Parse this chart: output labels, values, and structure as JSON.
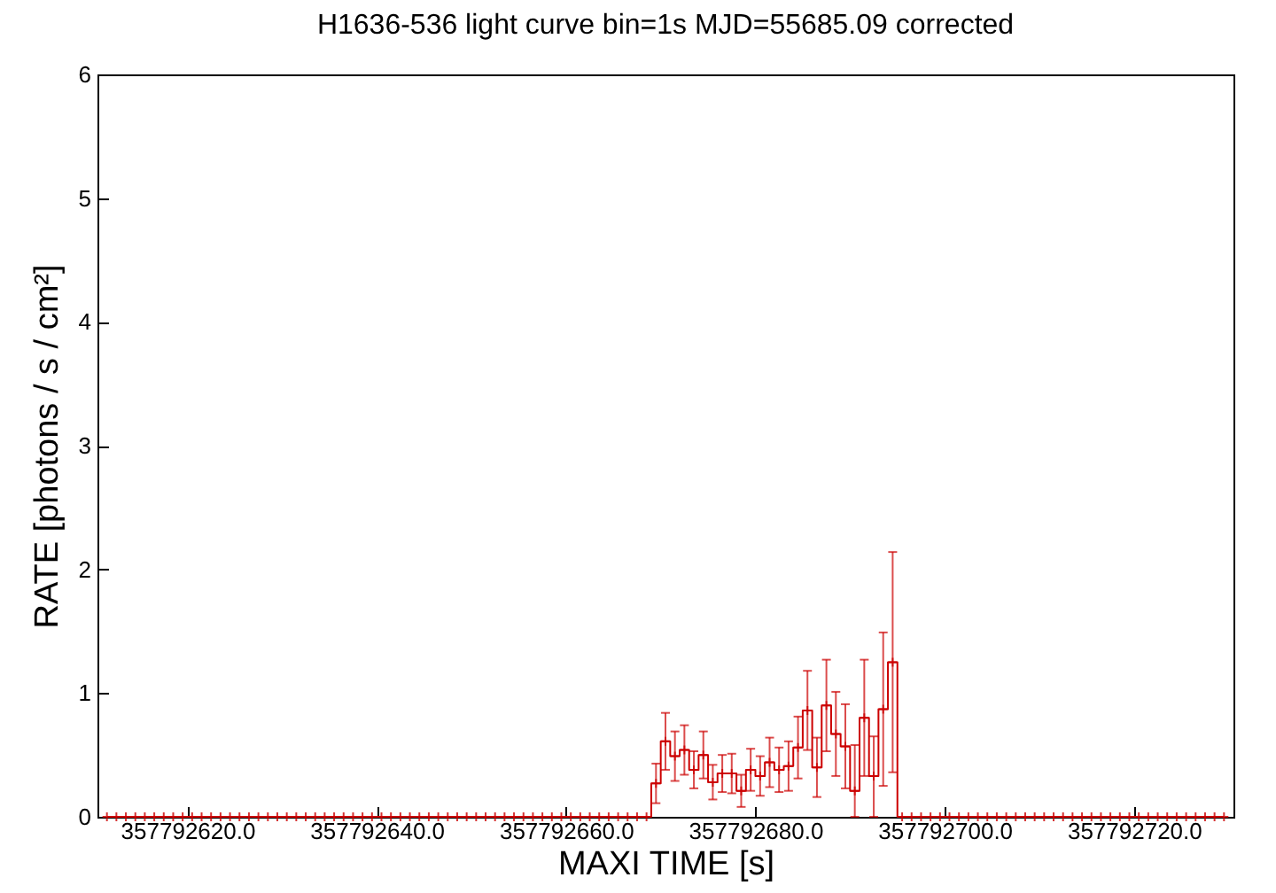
{
  "chart_data": {
    "type": "step",
    "title": "H1636-536 light curve bin=1s MJD=55685.09 corrected",
    "xlabel": "MAXI TIME [s]",
    "ylabel": "RATE [photons / s / cm²]",
    "color": "#cc0000",
    "marker": "cross",
    "grid": false,
    "xlim": [
      357792610.5,
      357792730.5
    ],
    "xticks": [
      {
        "value": 357792620,
        "label": "357792620.0"
      },
      {
        "value": 357792640,
        "label": "357792640.0"
      },
      {
        "value": 357792660,
        "label": "357792660.0"
      },
      {
        "value": 357792680,
        "label": "357792680.0"
      },
      {
        "value": 357792700,
        "label": "357792700.0"
      },
      {
        "value": 357792720,
        "label": "357792720.0"
      }
    ],
    "ylim": [
      0,
      6
    ],
    "yticks": [
      0,
      1,
      2,
      3,
      4,
      5,
      6
    ],
    "x": [
      357792611.5,
      357792612.5,
      357792613.5,
      357792614.5,
      357792615.5,
      357792616.5,
      357792617.5,
      357792618.5,
      357792619.5,
      357792620.5,
      357792621.5,
      357792622.5,
      357792623.5,
      357792624.5,
      357792625.5,
      357792626.5,
      357792627.5,
      357792628.5,
      357792629.5,
      357792630.5,
      357792631.5,
      357792632.5,
      357792633.5,
      357792634.5,
      357792635.5,
      357792636.5,
      357792637.5,
      357792638.5,
      357792639.5,
      357792640.5,
      357792641.5,
      357792642.5,
      357792643.5,
      357792644.5,
      357792645.5,
      357792646.5,
      357792647.5,
      357792648.5,
      357792649.5,
      357792650.5,
      357792651.5,
      357792652.5,
      357792653.5,
      357792654.5,
      357792655.5,
      357792656.5,
      357792657.5,
      357792658.5,
      357792659.5,
      357792660.5,
      357792661.5,
      357792662.5,
      357792663.5,
      357792664.5,
      357792665.5,
      357792666.5,
      357792667.5,
      357792668.5,
      357792669.5,
      357792670.5,
      357792671.5,
      357792672.5,
      357792673.5,
      357792674.5,
      357792675.5,
      357792676.5,
      357792677.5,
      357792678.5,
      357792679.5,
      357792680.5,
      357792681.5,
      357792682.5,
      357792683.5,
      357792684.5,
      357792685.5,
      357792686.5,
      357792687.5,
      357792688.5,
      357792689.5,
      357792690.5,
      357792691.5,
      357792692.5,
      357792693.5,
      357792694.5,
      357792695.5,
      357792696.5,
      357792697.5,
      357792698.5,
      357792699.5,
      357792700.5,
      357792701.5,
      357792702.5,
      357792703.5,
      357792704.5,
      357792705.5,
      357792706.5,
      357792707.5,
      357792708.5,
      357792709.5,
      357792710.5,
      357792711.5,
      357792712.5,
      357792713.5,
      357792714.5,
      357792715.5,
      357792716.5,
      357792717.5,
      357792718.5,
      357792719.5,
      357792720.5,
      357792721.5,
      357792722.5,
      357792723.5,
      357792724.5,
      357792725.5,
      357792726.5,
      357792727.5,
      357792728.5,
      357792729.5
    ],
    "values": [
      0,
      0,
      0,
      0,
      0,
      0,
      0,
      0,
      0,
      0,
      0,
      0,
      0,
      0,
      0,
      0,
      0,
      0,
      0,
      0,
      0,
      0,
      0,
      0,
      0,
      0,
      0,
      0,
      0,
      0,
      0,
      0,
      0,
      0,
      0,
      0,
      0,
      0,
      0,
      0,
      0,
      0,
      0,
      0,
      0,
      0,
      0,
      0,
      0,
      0,
      0,
      0,
      0,
      0,
      0,
      0,
      0,
      0,
      0.27,
      0.61,
      0.49,
      0.54,
      0.38,
      0.5,
      0.28,
      0.35,
      0.35,
      0.21,
      0.38,
      0.33,
      0.44,
      0.38,
      0.41,
      0.56,
      0.86,
      0.4,
      0.9,
      0.67,
      0.57,
      0.21,
      0.8,
      0.33,
      0.87,
      1.25,
      0,
      0,
      0,
      0,
      0,
      0,
      0,
      0,
      0,
      0,
      0,
      0,
      0,
      0,
      0,
      0,
      0,
      0,
      0,
      0,
      0,
      0,
      0,
      0,
      0,
      0,
      0,
      0,
      0,
      0,
      0,
      0,
      0,
      0,
      0
    ],
    "errors": [
      null,
      null,
      null,
      null,
      null,
      null,
      null,
      null,
      null,
      null,
      null,
      null,
      null,
      null,
      null,
      null,
      null,
      null,
      null,
      null,
      null,
      null,
      null,
      null,
      null,
      null,
      null,
      null,
      null,
      null,
      null,
      null,
      null,
      null,
      null,
      null,
      null,
      null,
      null,
      null,
      null,
      null,
      null,
      null,
      null,
      null,
      null,
      null,
      null,
      null,
      null,
      null,
      null,
      null,
      null,
      null,
      null,
      null,
      0.16,
      0.23,
      0.2,
      0.2,
      0.15,
      0.19,
      0.14,
      0.15,
      0.16,
      0.13,
      0.17,
      0.16,
      0.2,
      0.18,
      0.2,
      0.25,
      0.32,
      0.24,
      0.37,
      0.34,
      0.34,
      [
        0,
        0.58
      ],
      0.47,
      [
        0,
        0.65
      ],
      0.62,
      0.89,
      null,
      null,
      null,
      null,
      null,
      null,
      null,
      null,
      null,
      null,
      null,
      null,
      null,
      null,
      null,
      null,
      null,
      null,
      null,
      null,
      null,
      null,
      null,
      null,
      null,
      null,
      null,
      null,
      null,
      null,
      null,
      null,
      null,
      null,
      null
    ]
  }
}
